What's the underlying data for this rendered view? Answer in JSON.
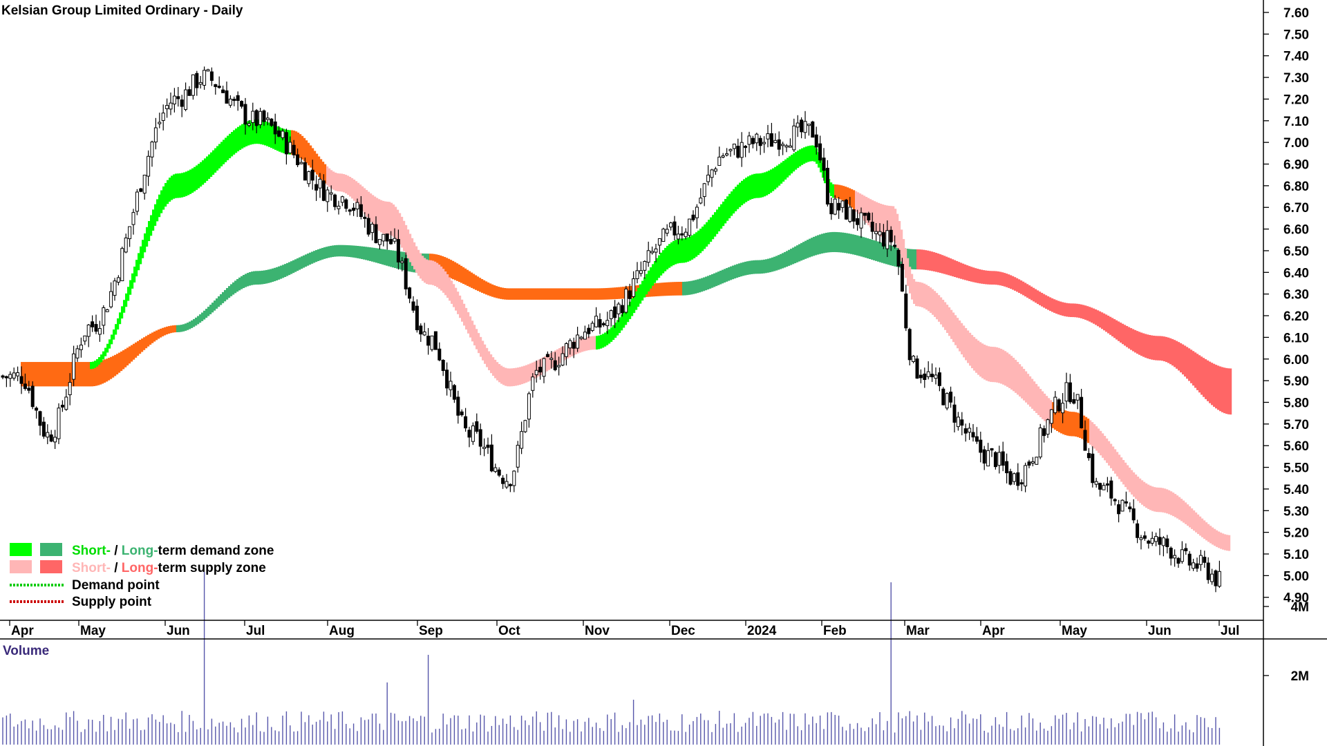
{
  "chart_data": {
    "type": "candlestick",
    "title": "Kelsian Group Limited Ordinary - Daily",
    "y_axis": {
      "ylim": [
        4.82,
        7.66
      ],
      "ticks": [
        "7.60",
        "7.50",
        "7.40",
        "7.30",
        "7.20",
        "7.10",
        "7.00",
        "6.90",
        "6.80",
        "6.70",
        "6.60",
        "6.50",
        "6.40",
        "6.30",
        "6.20",
        "6.10",
        "6.00",
        "5.90",
        "5.80",
        "5.70",
        "5.60",
        "5.50",
        "5.40",
        "5.30",
        "5.20",
        "5.10",
        "5.00",
        "4.90"
      ]
    },
    "x_axis": {
      "labels": [
        "Apr",
        "May",
        "Jun",
        "Jul",
        "Aug",
        "Sep",
        "Oct",
        "Nov",
        "Dec",
        "2024",
        "Feb",
        "Mar",
        "Apr",
        "May",
        "Jun",
        "Jul"
      ]
    },
    "price_keypoints": [
      {
        "date": "Apr",
        "close": 5.92
      },
      {
        "date": "Apr-late",
        "close": 5.65
      },
      {
        "date": "May",
        "close": 6.15
      },
      {
        "date": "Jun",
        "close": 7.2
      },
      {
        "date": "Jun-mid",
        "close": 7.3
      },
      {
        "date": "Jul",
        "close": 7.1
      },
      {
        "date": "Aug",
        "close": 6.75
      },
      {
        "date": "Aug-late",
        "close": 6.55
      },
      {
        "date": "Sep",
        "close": 6.1
      },
      {
        "date": "Sep-late",
        "close": 5.65
      },
      {
        "date": "Oct",
        "close": 5.45
      },
      {
        "date": "Oct-mid",
        "close": 5.95
      },
      {
        "date": "Nov",
        "close": 6.15
      },
      {
        "date": "Dec",
        "close": 6.6
      },
      {
        "date": "Dec-late",
        "close": 6.95
      },
      {
        "date": "2024",
        "close": 7.0
      },
      {
        "date": "Jan-late",
        "close": 7.05
      },
      {
        "date": "Feb",
        "close": 6.7
      },
      {
        "date": "Feb-late",
        "close": 6.55
      },
      {
        "date": "Mar",
        "close": 5.95
      },
      {
        "date": "Apr",
        "close": 5.55
      },
      {
        "date": "Apr-late",
        "close": 5.45
      },
      {
        "date": "May",
        "close": 5.85
      },
      {
        "date": "May-late",
        "close": 5.4
      },
      {
        "date": "Jun",
        "close": 5.15
      },
      {
        "date": "Jun-late",
        "close": 5.05
      },
      {
        "date": "Jul",
        "close": 4.95
      }
    ],
    "short_term_zone": [
      {
        "x": "May",
        "lo": 5.96,
        "hi": 5.98,
        "state": "demand"
      },
      {
        "x": "Jun",
        "lo": 6.75,
        "hi": 6.85,
        "state": "demand"
      },
      {
        "x": "Jul",
        "lo": 7.0,
        "hi": 7.1,
        "state": "demand"
      },
      {
        "x": "Jul-late",
        "lo": 6.95,
        "hi": 7.05,
        "state": "supply"
      },
      {
        "x": "Aug",
        "lo": 6.78,
        "hi": 6.85,
        "state": "supply"
      },
      {
        "x": "Aug-late",
        "lo": 6.58,
        "hi": 6.72,
        "state": "supply"
      },
      {
        "x": "Sep",
        "lo": 6.35,
        "hi": 6.45,
        "state": "supply"
      },
      {
        "x": "Oct",
        "lo": 5.88,
        "hi": 5.95,
        "state": "supply"
      },
      {
        "x": "Nov",
        "lo": 6.05,
        "hi": 6.1,
        "state": "demand"
      },
      {
        "x": "Dec",
        "lo": 6.45,
        "hi": 6.55,
        "state": "demand"
      },
      {
        "x": "2024",
        "lo": 6.75,
        "hi": 6.85,
        "state": "demand"
      },
      {
        "x": "Jan-late",
        "lo": 6.92,
        "hi": 6.98,
        "state": "demand"
      },
      {
        "x": "Feb",
        "lo": 6.75,
        "hi": 6.8,
        "state": "supply"
      },
      {
        "x": "Feb-late",
        "lo": 6.55,
        "hi": 6.7,
        "state": "supply"
      },
      {
        "x": "Mar",
        "lo": 6.25,
        "hi": 6.35,
        "state": "supply"
      },
      {
        "x": "Apr",
        "lo": 5.9,
        "hi": 6.05,
        "state": "supply"
      },
      {
        "x": "May",
        "lo": 5.65,
        "hi": 5.75,
        "state": "supply"
      },
      {
        "x": "Jun",
        "lo": 5.3,
        "hi": 5.4,
        "state": "supply"
      },
      {
        "x": "Jul",
        "lo": 5.12,
        "hi": 5.18,
        "state": "supply"
      }
    ],
    "long_term_zone": [
      {
        "x": "Apr",
        "lo": 5.88,
        "hi": 5.98,
        "state": "supply"
      },
      {
        "x": "May",
        "lo": 5.88,
        "hi": 5.98,
        "state": "supply"
      },
      {
        "x": "Jun",
        "lo": 6.13,
        "hi": 6.15,
        "state": "demand"
      },
      {
        "x": "Jul",
        "lo": 6.35,
        "hi": 6.4,
        "state": "demand"
      },
      {
        "x": "Aug",
        "lo": 6.48,
        "hi": 6.52,
        "state": "demand"
      },
      {
        "x": "Sep",
        "lo": 6.4,
        "hi": 6.48,
        "state": "supply"
      },
      {
        "x": "Oct",
        "lo": 6.28,
        "hi": 6.32,
        "state": "supply"
      },
      {
        "x": "Nov",
        "lo": 6.28,
        "hi": 6.32,
        "state": "supply"
      },
      {
        "x": "Dec",
        "lo": 6.3,
        "hi": 6.35,
        "state": "demand"
      },
      {
        "x": "2024",
        "lo": 6.4,
        "hi": 6.45,
        "state": "demand"
      },
      {
        "x": "Feb",
        "lo": 6.5,
        "hi": 6.58,
        "state": "demand"
      },
      {
        "x": "Mar",
        "lo": 6.42,
        "hi": 6.5,
        "state": "supply"
      },
      {
        "x": "Apr",
        "lo": 6.35,
        "hi": 6.4,
        "state": "supply"
      },
      {
        "x": "May",
        "lo": 6.2,
        "hi": 6.25,
        "state": "supply"
      },
      {
        "x": "Jun",
        "lo": 6.0,
        "hi": 6.1,
        "state": "supply"
      },
      {
        "x": "Jul",
        "lo": 5.75,
        "hi": 5.95,
        "state": "supply"
      }
    ],
    "volume": {
      "label": "Volume",
      "ticks": [
        "4M",
        "2M"
      ],
      "spikes": [
        {
          "x": "Jun-mid",
          "value": 5000000
        },
        {
          "x": "Aug-late",
          "value": 1800000
        },
        {
          "x": "Sep",
          "value": 2600000
        },
        {
          "x": "Nov-late",
          "value": 1300000
        },
        {
          "x": "Feb-late",
          "value": 4700000
        }
      ],
      "baseline": 700000
    },
    "legend": {
      "position": "bottom-left",
      "entries": [
        {
          "short": "Short-",
          "sep": " / ",
          "long": "Long-",
          "rest": "term demand zone",
          "colors": [
            "#00ff00",
            "#3cb371"
          ]
        },
        {
          "short": "Short-",
          "sep": " / ",
          "long": "Long-",
          "rest": "term supply zone",
          "colors": [
            "#ffb6b6",
            "#ff6666"
          ]
        },
        {
          "label": "Demand point",
          "color": "#00cc00"
        },
        {
          "label": "Supply point",
          "color": "#cc0000"
        }
      ]
    },
    "colors": {
      "demand_short": "#00ff00",
      "demand_long": "#3cb371",
      "supply_short_transition": "#ff6a13",
      "supply_short": "#ffb6b6",
      "supply_long": "#ff6666",
      "volume": "#5555aa"
    }
  }
}
